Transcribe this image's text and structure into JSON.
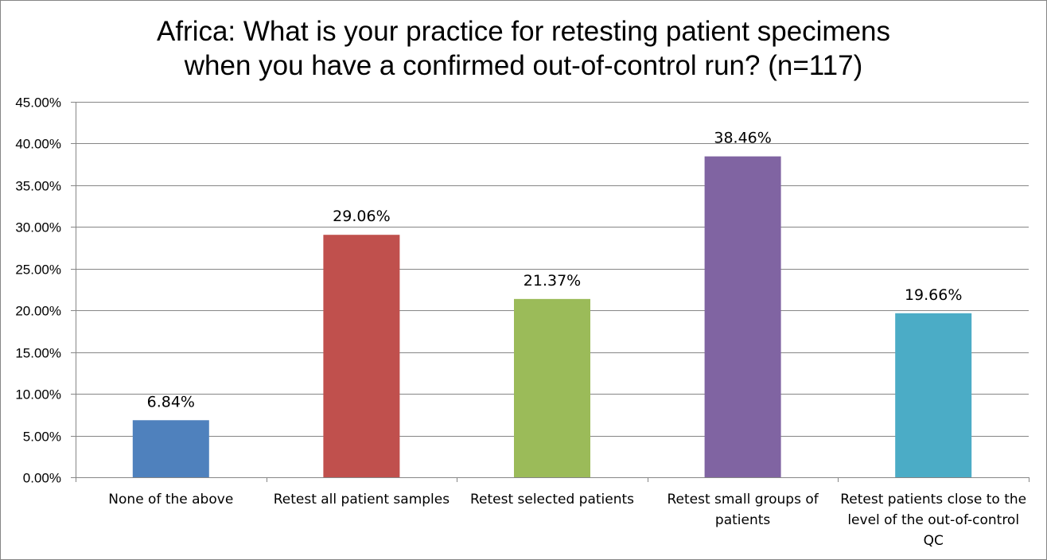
{
  "chart_data": {
    "type": "bar",
    "title_lines": [
      "Africa: What is your practice for retesting patient specimens",
      "when you have a confirmed out-of-control run? (n=117)"
    ],
    "categories": [
      [
        "None of the above"
      ],
      [
        "Retest all patient samples"
      ],
      [
        "Retest selected patients"
      ],
      [
        "Retest small groups of",
        "patients"
      ],
      [
        "Retest patients close to the",
        "level of the out-of-control",
        "QC"
      ]
    ],
    "values": [
      6.84,
      29.06,
      21.37,
      38.46,
      19.66
    ],
    "data_labels": [
      "6.84%",
      "29.06%",
      "21.37%",
      "38.46%",
      "19.66%"
    ],
    "colors": [
      "#4F81BD",
      "#C0504D",
      "#9BBB59",
      "#8064A2",
      "#4BACC6"
    ],
    "ylim": [
      0,
      45
    ],
    "ytick_step": 5,
    "ytick_labels": [
      "0.00%",
      "5.00%",
      "10.00%",
      "15.00%",
      "20.00%",
      "25.00%",
      "30.00%",
      "35.00%",
      "40.00%",
      "45.00%"
    ],
    "xlabel": "",
    "ylabel": "",
    "grid": true,
    "legend": "none"
  }
}
